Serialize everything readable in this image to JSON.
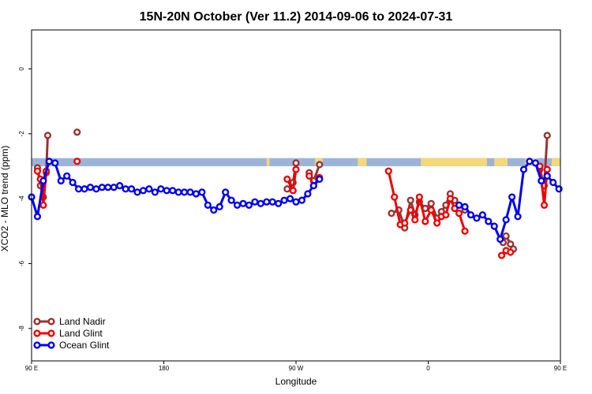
{
  "chart_data": {
    "type": "line",
    "title": "15N-20N October (Ver 11.2)   2014-09-06 to 2024-07-31",
    "xlabel": "Longitude",
    "ylabel": "XCO2 - MLO trend (ppm)",
    "xlim": [
      90,
      450
    ],
    "ylim": [
      -9,
      1.2
    ],
    "y_ticks": [
      0,
      -2,
      -4,
      -6,
      -8
    ],
    "x_ticks": [
      {
        "value": 90,
        "label": "90 E"
      },
      {
        "value": 180,
        "label": "180"
      },
      {
        "value": 270,
        "label": "90 W"
      },
      {
        "value": 360,
        "label": "0"
      },
      {
        "value": 450,
        "label": "90 E"
      },
      {
        "value": 540,
        "label": "180"
      }
    ],
    "grid": false,
    "legend_position": "bottom-left",
    "land_band": {
      "y_top": -2.75,
      "y_bottom": -3.0,
      "ocean_color": "#9db4d8",
      "land_color": "#f5d87a"
    },
    "land_segments": [
      [
        250,
        252
      ],
      [
        283,
        288
      ],
      [
        312,
        318
      ],
      [
        355,
        400
      ],
      [
        405,
        414
      ],
      [
        426,
        434
      ],
      [
        444,
        450
      ]
    ],
    "series": [
      {
        "name": "Land Nadir",
        "color": "#993333",
        "segments": [
          [
            [
              94,
              -3.05
            ],
            [
              96,
              -3.6
            ],
            [
              98,
              -3.95
            ],
            [
              100,
              -3.2
            ],
            [
              101,
              -2.05
            ]
          ],
          [
            [
              121,
              -1.95
            ]
          ],
          [
            [
              264,
              -3.7
            ],
            [
              268,
              -3.5
            ],
            [
              270,
              -2.9
            ]
          ],
          [
            [
              279,
              -3.2
            ],
            [
              282,
              -3.45
            ],
            [
              286,
              -2.95
            ]
          ],
          [
            [
              335,
              -4.45
            ],
            [
              340,
              -4.35
            ],
            [
              344,
              -4.9
            ],
            [
              348,
              -4.05
            ],
            [
              351,
              -4.5
            ],
            [
              354,
              -4.1
            ],
            [
              358,
              -4.3
            ],
            [
              362,
              -4.15
            ],
            [
              366,
              -4.6
            ],
            [
              369,
              -4.4
            ],
            [
              372,
              -4.2
            ],
            [
              375,
              -3.85
            ],
            [
              378,
              -4.05
            ],
            [
              381,
              -4.2
            ],
            [
              385,
              -4.35
            ]
          ],
          [
            [
              411,
              -5.35
            ],
            [
              413,
              -5.15
            ],
            [
              416,
              -5.4
            ],
            [
              418,
              -5.55
            ]
          ],
          [
            [
              436,
              -3.1
            ],
            [
              439,
              -3.6
            ],
            [
              441,
              -2.05
            ]
          ],
          [
            [
              461,
              -1.95
            ]
          ]
        ]
      },
      {
        "name": "Land Glint",
        "color": "#ee0000",
        "segments": [
          [
            [
              94,
              -3.15
            ],
            [
              96,
              -3.4
            ],
            [
              98,
              -4.2
            ],
            [
              100,
              -3.15
            ]
          ],
          [
            [
              121,
              -2.85
            ]
          ],
          [
            [
              264,
              -3.4
            ],
            [
              268,
              -3.75
            ],
            [
              270,
              -3.1
            ]
          ],
          [
            [
              279,
              -3.3
            ],
            [
              282,
              -3.6
            ],
            [
              286,
              -3.35
            ]
          ],
          [
            [
              333,
              -3.15
            ],
            [
              337,
              -3.95
            ],
            [
              341,
              -4.8
            ],
            [
              344,
              -4.75
            ],
            [
              348,
              -4.35
            ],
            [
              351,
              -4.65
            ],
            [
              354,
              -3.95
            ],
            [
              358,
              -4.7
            ],
            [
              362,
              -4.35
            ],
            [
              366,
              -4.75
            ],
            [
              369,
              -4.55
            ],
            [
              372,
              -4.5
            ],
            [
              375,
              -4.0
            ],
            [
              378,
              -4.3
            ],
            [
              381,
              -4.45
            ],
            [
              385,
              -5.0
            ]
          ],
          [
            [
              410,
              -5.75
            ],
            [
              413,
              -5.6
            ],
            [
              416,
              -5.65
            ]
          ],
          [
            [
              436,
              -3.0
            ],
            [
              439,
              -4.2
            ],
            [
              441,
              -3.1
            ]
          ],
          [
            [
              461,
              -2.85
            ]
          ]
        ]
      },
      {
        "name": "Ocean Glint",
        "color": "#0000ee",
        "segments": [
          [
            [
              90,
              -3.95
            ],
            [
              94,
              -4.55
            ],
            [
              98,
              -3.45
            ],
            [
              102,
              -2.85
            ],
            [
              106,
              -2.9
            ],
            [
              110,
              -3.45
            ],
            [
              114,
              -3.3
            ],
            [
              118,
              -3.5
            ],
            [
              122,
              -3.7
            ],
            [
              126,
              -3.7
            ],
            [
              130,
              -3.65
            ],
            [
              134,
              -3.7
            ],
            [
              138,
              -3.65
            ],
            [
              142,
              -3.65
            ],
            [
              146,
              -3.65
            ],
            [
              150,
              -3.6
            ],
            [
              154,
              -3.7
            ],
            [
              158,
              -3.7
            ],
            [
              162,
              -3.8
            ],
            [
              166,
              -3.75
            ],
            [
              170,
              -3.7
            ],
            [
              174,
              -3.8
            ],
            [
              178,
              -3.7
            ],
            [
              182,
              -3.75
            ],
            [
              186,
              -3.75
            ],
            [
              190,
              -3.8
            ],
            [
              194,
              -3.8
            ],
            [
              198,
              -3.8
            ],
            [
              202,
              -3.85
            ],
            [
              206,
              -3.8
            ],
            [
              210,
              -4.2
            ],
            [
              214,
              -4.35
            ],
            [
              218,
              -4.25
            ],
            [
              222,
              -3.8
            ],
            [
              226,
              -4.05
            ],
            [
              230,
              -4.2
            ],
            [
              234,
              -4.15
            ],
            [
              238,
              -4.2
            ],
            [
              242,
              -4.1
            ],
            [
              246,
              -4.15
            ],
            [
              250,
              -4.1
            ],
            [
              254,
              -4.1
            ],
            [
              258,
              -4.15
            ],
            [
              262,
              -4.05
            ],
            [
              266,
              -4.0
            ],
            [
              270,
              -4.1
            ],
            [
              274,
              -4.05
            ],
            [
              278,
              -3.85
            ],
            [
              282,
              -3.6
            ],
            [
              286,
              -3.4
            ]
          ],
          [
            [
              381,
              -4.2
            ],
            [
              385,
              -4.25
            ],
            [
              389,
              -4.5
            ],
            [
              393,
              -4.6
            ],
            [
              397,
              -4.5
            ],
            [
              401,
              -4.7
            ],
            [
              405,
              -4.85
            ],
            [
              409,
              -5.25
            ],
            [
              413,
              -4.65
            ],
            [
              417,
              -3.95
            ],
            [
              421,
              -4.55
            ],
            [
              425,
              -3.1
            ],
            [
              429,
              -2.85
            ],
            [
              433,
              -2.9
            ],
            [
              437,
              -3.45
            ],
            [
              441,
              -3.3
            ],
            [
              445,
              -3.5
            ],
            [
              449,
              -3.7
            ],
            [
              453,
              -3.7
            ],
            [
              457,
              -3.65
            ],
            [
              461,
              -3.65
            ],
            [
              465,
              -3.6
            ],
            [
              469,
              -3.6
            ],
            [
              473,
              -3.65
            ],
            [
              477,
              -3.65
            ],
            [
              481,
              -3.6
            ],
            [
              485,
              -3.65
            ]
          ]
        ]
      }
    ]
  }
}
